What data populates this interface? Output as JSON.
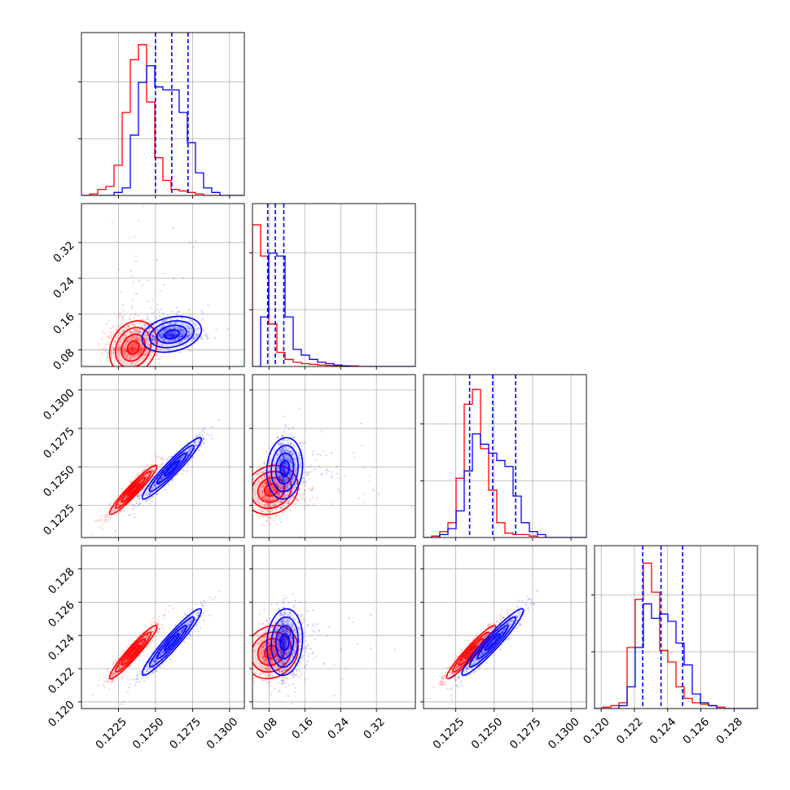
{
  "chart_data": {
    "type": "corner",
    "grid": true,
    "colors": {
      "red": "#ff0000",
      "blue": "#0000ff",
      "red_fill": "#ffb3b3",
      "blue_fill": "#8a8aff"
    },
    "parameters": [
      {
        "range": [
          0.12,
          0.131
        ],
        "ticks": [
          0.1225,
          0.125,
          0.1275,
          0.13
        ],
        "tick_labels": [
          "0.1225",
          "0.1250",
          "0.1275",
          "0.1300"
        ]
      },
      {
        "range": [
          0.043,
          0.407
        ],
        "ticks": [
          0.08,
          0.16,
          0.24,
          0.32
        ],
        "tick_labels": [
          "0.08",
          "0.16",
          "0.24",
          "0.32"
        ]
      },
      {
        "range": [
          0.1204,
          0.131
        ],
        "ticks": [
          0.1225,
          0.125,
          0.1275,
          0.13
        ],
        "tick_labels": [
          "0.1225",
          "0.1250",
          "0.1275",
          "0.1300"
        ]
      },
      {
        "range": [
          0.1196,
          0.1294
        ],
        "ticks": [
          0.12,
          0.122,
          0.124,
          0.126,
          0.128
        ],
        "tick_labels": [
          "0.120",
          "0.122",
          "0.124",
          "0.126",
          "0.128"
        ]
      }
    ],
    "series": [
      {
        "color": "red",
        "means": [
          0.1235,
          0.085,
          0.1235,
          0.123
        ],
        "sds": [
          0.0008,
          0.03,
          0.0008,
          0.0008
        ],
        "correlations": {
          "0-1": 0.2,
          "0-2": 0.95,
          "0-3": 0.95,
          "1-2": 0.15,
          "1-3": 0.15,
          "2-3": 0.95
        },
        "histograms": [
          {
            "counts": [
              0.0,
              0.01,
              0.04,
              0.06,
              0.2,
              0.55,
              0.9,
              1.0,
              0.62,
              0.25,
              0.1,
              0.04,
              0.03,
              0.02,
              0.01,
              0.0,
              0.0,
              0.0,
              0.0,
              0.0
            ],
            "max": 1.08
          },
          {
            "counts": [
              1.0,
              0.78,
              0.3,
              0.1,
              0.05,
              0.03,
              0.02,
              0.015,
              0.01,
              0.008,
              0.006,
              0.005,
              0.004,
              0.0,
              0.0,
              0.0,
              0.0,
              0.0,
              0.0,
              0.0
            ],
            "max": 1.15
          },
          {
            "counts": [
              0.0,
              0.01,
              0.04,
              0.1,
              0.4,
              0.9,
              1.0,
              0.6,
              0.32,
              0.1,
              0.03,
              0.02,
              0.02,
              0.01,
              0.0,
              0.0,
              0.0,
              0.0,
              0.0,
              0.0
            ],
            "max": 1.1
          },
          {
            "counts": [
              0.0,
              0.01,
              0.02,
              0.04,
              0.42,
              0.75,
              1.0,
              0.8,
              0.4,
              0.32,
              0.15,
              0.07,
              0.04,
              0.03,
              0.02,
              0.01,
              0.0,
              0.0,
              0.0,
              0.0
            ],
            "max": 1.12
          }
        ]
      },
      {
        "color": "blue",
        "means": [
          0.1261,
          0.115,
          0.1249,
          0.1236
        ],
        "sds": [
          0.001,
          0.02,
          0.001,
          0.001
        ],
        "correlations": {
          "0-1": 0.25,
          "0-2": 0.95,
          "0-3": 0.95,
          "1-2": 0.1,
          "1-3": 0.1,
          "2-3": 0.95
        },
        "histograms": [
          {
            "counts": [
              0.0,
              0.0,
              0.0,
              0.0,
              0.02,
              0.05,
              0.4,
              0.75,
              0.86,
              0.72,
              0.7,
              0.7,
              0.55,
              0.35,
              0.15,
              0.05,
              0.02,
              0.0,
              0.0,
              0.0
            ],
            "max": 1.08
          },
          {
            "counts": [
              0.0,
              0.35,
              0.8,
              0.78,
              0.35,
              0.12,
              0.08,
              0.05,
              0.03,
              0.02,
              0.01,
              0.005,
              0.0,
              0.0,
              0.0,
              0.0,
              0.0,
              0.0,
              0.0,
              0.0
            ],
            "max": 1.15
          },
          {
            "counts": [
              0.0,
              0.0,
              0.02,
              0.06,
              0.18,
              0.45,
              0.7,
              0.63,
              0.57,
              0.52,
              0.48,
              0.28,
              0.1,
              0.04,
              0.02,
              0.0,
              0.0,
              0.0,
              0.0,
              0.0
            ],
            "max": 1.1
          },
          {
            "counts": [
              0.0,
              0.0,
              0.0,
              0.02,
              0.15,
              0.42,
              0.72,
              0.62,
              0.65,
              0.6,
              0.45,
              0.3,
              0.1,
              0.04,
              0.02,
              0.0,
              0.0,
              0.0,
              0.0,
              0.0
            ],
            "max": 1.12
          }
        ],
        "quantiles": [
          [
            0.125,
            0.1261,
            0.1272
          ],
          [
            0.077,
            0.094,
            0.113
          ],
          [
            0.1234,
            0.1249,
            0.1264
          ],
          [
            0.1225,
            0.1236,
            0.1249
          ]
        ]
      }
    ]
  }
}
